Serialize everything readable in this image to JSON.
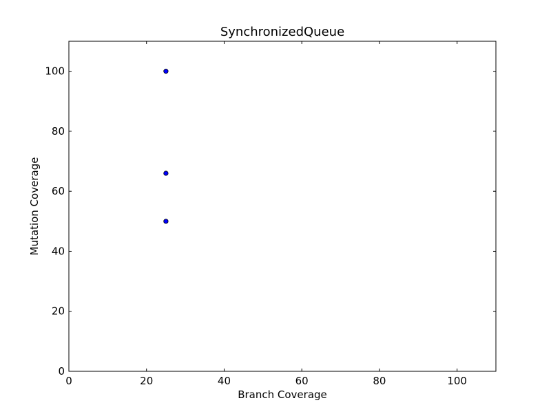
{
  "chart_data": {
    "type": "scatter",
    "title": "SynchronizedQueue",
    "xlabel": "Branch Coverage",
    "ylabel": "Mutation Coverage",
    "xlim": [
      0,
      110
    ],
    "ylim": [
      0,
      110
    ],
    "xticks": [
      0,
      20,
      40,
      60,
      80,
      100
    ],
    "yticks": [
      0,
      20,
      40,
      60,
      80,
      100
    ],
    "grid": false,
    "legend": "none",
    "marker_color": "#0000ff",
    "points": [
      {
        "x": 25,
        "y": 100
      },
      {
        "x": 25,
        "y": 66
      },
      {
        "x": 25,
        "y": 50
      }
    ]
  }
}
